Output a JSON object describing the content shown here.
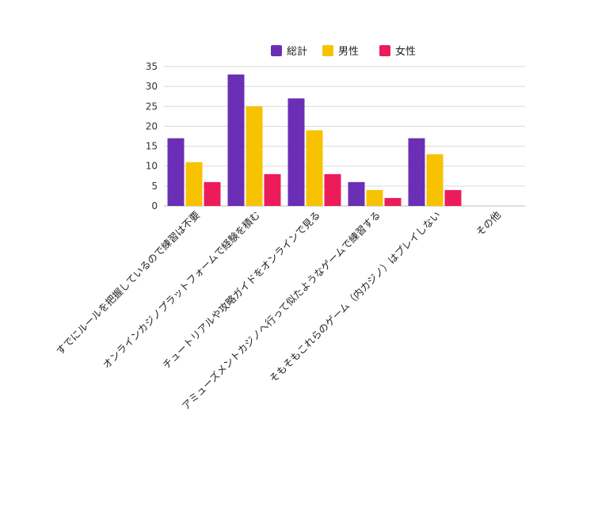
{
  "chart_data": {
    "type": "bar",
    "title": "",
    "xlabel": "",
    "ylabel": "",
    "ylim": [
      0,
      35
    ],
    "yticks": [
      0,
      5,
      10,
      15,
      20,
      25,
      30,
      35
    ],
    "grid": true,
    "legend_position": "top",
    "categories": [
      "すでにルールを把握しているので練習は不要",
      "オンラインカジノプラットフォームで経験を積む",
      "チュートリアルや攻略ガイドをオンラインで見る",
      "アミューズメントカジノへ行って似たようなゲームで練習する",
      "そもそもこれらのゲーム（内カジノ）はプレイしない",
      "その他"
    ],
    "series": [
      {
        "name": "総計",
        "color": "#6a2fb5",
        "values": [
          17,
          33,
          27,
          6,
          17,
          0
        ]
      },
      {
        "name": "男性",
        "color": "#f7c200",
        "values": [
          11,
          25,
          19,
          4,
          13,
          0
        ]
      },
      {
        "name": "女性",
        "color": "#ec1c5a",
        "values": [
          6,
          8,
          8,
          2,
          4,
          0
        ]
      }
    ]
  }
}
